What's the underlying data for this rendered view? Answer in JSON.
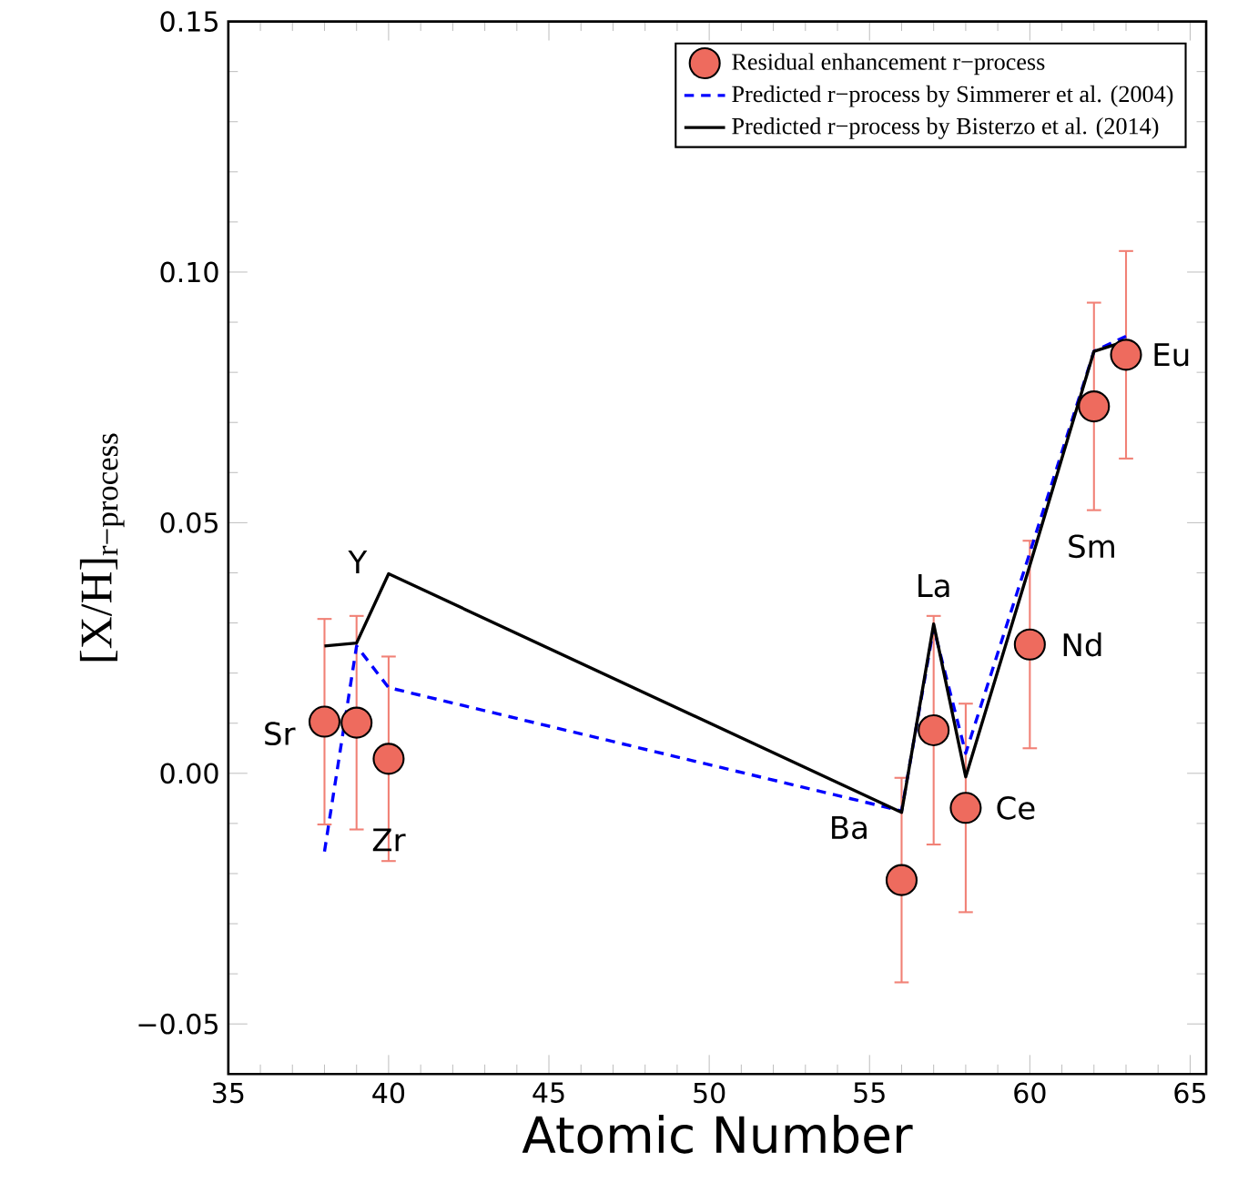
{
  "chart_data": {
    "type": "scatter",
    "xlabel": "Atomic Number",
    "ylabel": "[X/H]$_{r−process}$",
    "xlim": [
      35,
      65.5
    ],
    "ylim": [
      -0.06,
      0.15
    ],
    "xticks": [
      35,
      40,
      45,
      50,
      55,
      60,
      65
    ],
    "yticks": [
      {
        "value": -0.05,
        "label": "−0.05"
      },
      {
        "value": 0,
        "label": "0.00"
      },
      {
        "value": 0.05,
        "label": "0.05"
      },
      {
        "value": 0.1,
        "label": "0.10"
      },
      {
        "value": 0.15,
        "label": "0.15"
      }
    ],
    "legend": "top right",
    "series": [
      {
        "name": "Residual enhancement r−process",
        "marker": "circle",
        "color": "#ee6b5e",
        "x": [
          38,
          39,
          40,
          56,
          57,
          58,
          60,
          62,
          63
        ],
        "values": [
          0.0103,
          0.0101,
          0.0029,
          -0.0213,
          0.0086,
          -0.0069,
          0.0257,
          0.0732,
          0.0835
        ],
        "errors": [
          0.0205,
          0.0213,
          0.0204,
          0.0204,
          0.0228,
          0.0208,
          0.0207,
          0.0207,
          0.0207
        ]
      },
      {
        "name": "Predicted r−process by Simmerer et al. (2004)",
        "type": "line",
        "marker": "none",
        "line_style": "dashed",
        "color": "#0000ff",
        "x": [
          38,
          39,
          40,
          56,
          57,
          58,
          60,
          62,
          63
        ],
        "values": [
          -0.0156,
          0.0254,
          0.0171,
          -0.0075,
          0.029,
          0.004,
          0.044,
          0.0842,
          0.0872
        ]
      },
      {
        "name": "Predicted r−process by Bisterzo et al. (2014)",
        "type": "line",
        "marker": "none",
        "line_style": "solid",
        "color": "#000000",
        "x": [
          38,
          39,
          40,
          56,
          57,
          58,
          60,
          62,
          63
        ],
        "values": [
          0.0254,
          0.026,
          0.0398,
          -0.0078,
          0.0298,
          -0.0007,
          0.0415,
          0.0842,
          0.0862
        ]
      }
    ],
    "annotations": [
      {
        "text": "Sr",
        "x": 38,
        "y": 0.0103
      },
      {
        "text": "Y",
        "x": 40,
        "y": 0.0398
      },
      {
        "text": "Zr",
        "x": 40,
        "y": 0.0029
      },
      {
        "text": "Ba",
        "x": 56,
        "y": -0.0213
      },
      {
        "text": "La",
        "x": 57,
        "y": 0.0298
      },
      {
        "text": "Ce",
        "x": 58,
        "y": -0.0069
      },
      {
        "text": "Nd",
        "x": 60,
        "y": 0.0257
      },
      {
        "text": "Sm",
        "x": 60,
        "y": 0.0415
      },
      {
        "text": "Eu",
        "x": 63,
        "y": 0.0835
      }
    ]
  }
}
